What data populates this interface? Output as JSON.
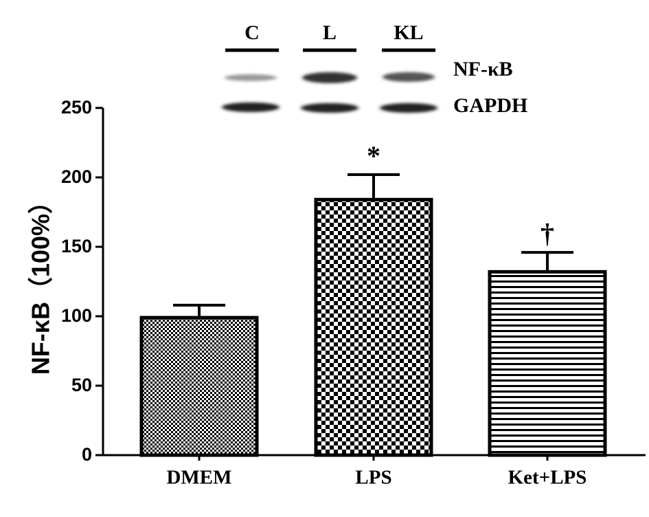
{
  "chart_data": {
    "type": "bar",
    "y_label": "NF-κB（100%）",
    "categories": [
      "DMEM",
      "LPS",
      "Ket+LPS"
    ],
    "values": [
      99,
      184,
      132
    ],
    "errors": [
      9,
      18,
      14
    ],
    "patterns": [
      "fine-checker",
      "checker",
      "horizontal-lines"
    ],
    "color": "#000000",
    "ylim": [
      0,
      250
    ],
    "yticks": [
      0,
      50,
      100,
      150,
      200,
      250
    ],
    "annotations": [
      {
        "category": "LPS",
        "text": "*"
      },
      {
        "category": "Ket+LPS",
        "text": "†"
      }
    ],
    "inset": {
      "lanes": [
        "C",
        "L",
        "KL"
      ],
      "bands": [
        "NF-κB",
        "GAPDH"
      ]
    }
  }
}
